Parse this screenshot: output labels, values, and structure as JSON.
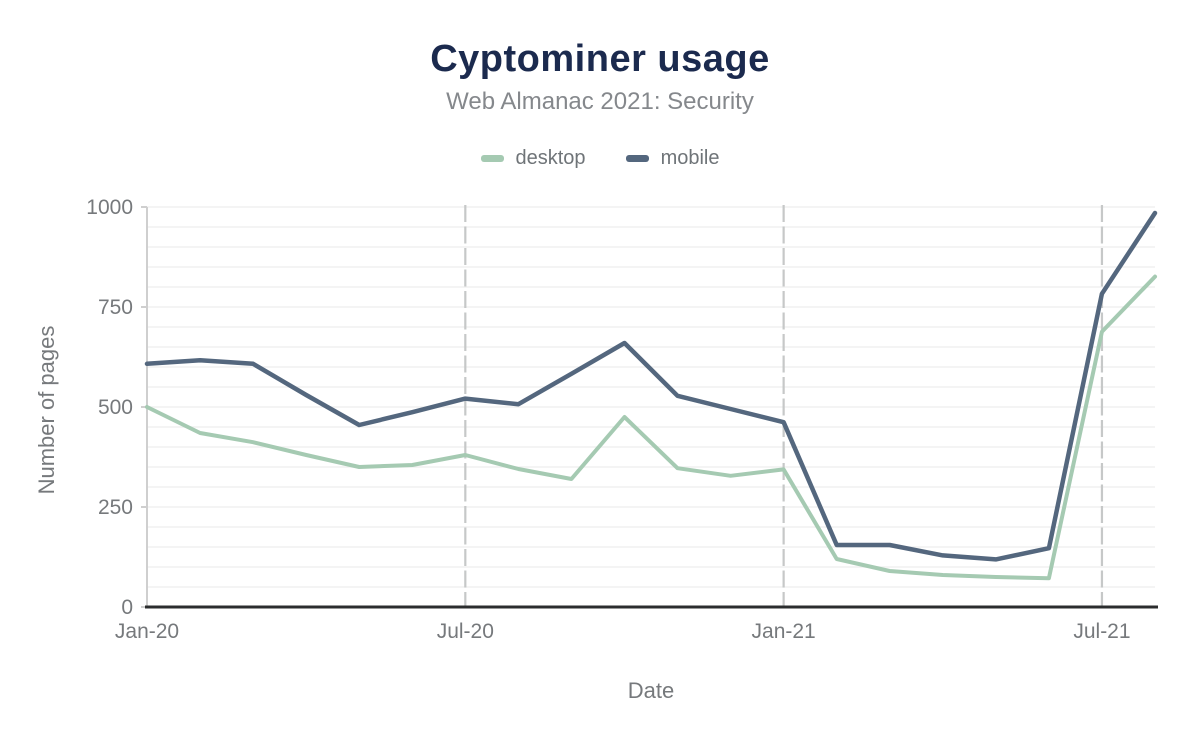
{
  "header": {
    "title": "Cyptominer usage",
    "subtitle": "Web Almanac 2021: Security"
  },
  "legend": [
    {
      "label": "desktop",
      "color": "#a5cab2"
    },
    {
      "label": "mobile",
      "color": "#54677e"
    }
  ],
  "axes": {
    "y_title": "Number of pages",
    "x_title": "Date"
  },
  "colors": {
    "title": "#1b2a4e",
    "subtitle": "#85888c",
    "tick_label": "#76797c",
    "axis_line": "#2b2d2e",
    "y_axis_line": "#cfcfcf",
    "minor_grid": "#f0f0f0",
    "major_vgrid": "#c6c8c8",
    "desktop_line": "#a5cab2",
    "mobile_line": "#54677e"
  },
  "chart_data": {
    "type": "line",
    "title": "Cyptominer usage",
    "subtitle": "Web Almanac 2021: Security",
    "xlabel": "Date",
    "ylabel": "Number of pages",
    "ylim": [
      0,
      1000
    ],
    "yticks": [
      0,
      250,
      500,
      750,
      1000
    ],
    "y_minor_grid_step": 50,
    "xticks": [
      "Jan-20",
      "Jul-20",
      "Jan-21",
      "Jul-21"
    ],
    "xtick_indices": [
      0,
      6,
      12,
      18
    ],
    "legend_position": "top",
    "grid": "minor horizontal lines every 50; dashed vertical lines at major x ticks",
    "x": [
      "Jan-20",
      "Feb-20",
      "Mar-20",
      "Apr-20",
      "May-20",
      "Jun-20",
      "Jul-20",
      "Aug-20",
      "Sep-20",
      "Oct-20",
      "Nov-20",
      "Dec-20",
      "Jan-21",
      "Feb-21",
      "Mar-21",
      "Apr-21",
      "May-21",
      "Jun-21",
      "Jul-21",
      "Aug-21"
    ],
    "series": [
      {
        "name": "desktop",
        "color": "#a5cab2",
        "values": [
          500,
          435,
          412,
          380,
          350,
          355,
          380,
          345,
          320,
          475,
          347,
          328,
          344,
          120,
          90,
          80,
          75,
          72,
          688,
          826
        ]
      },
      {
        "name": "mobile",
        "color": "#54677e",
        "values": [
          608,
          617,
          608,
          530,
          455,
          487,
          521,
          507,
          583,
          660,
          528,
          495,
          462,
          155,
          155,
          129,
          119,
          147,
          783,
          985
        ]
      }
    ]
  }
}
